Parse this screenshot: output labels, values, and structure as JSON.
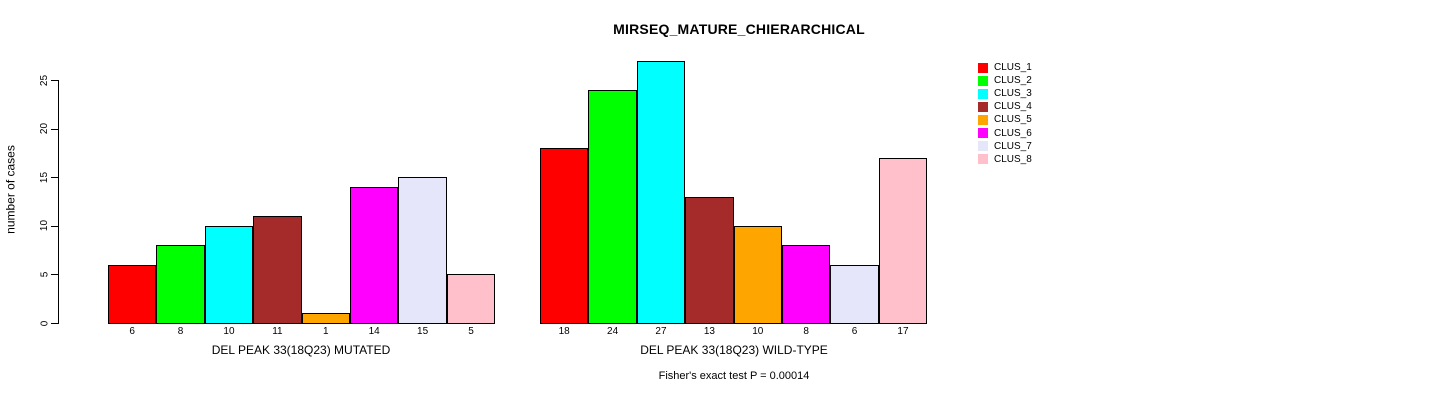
{
  "chart_data": {
    "type": "bar",
    "title": "MIRSEQ_MATURE_CHIERARCHICAL",
    "ylabel": "number of cases",
    "ylim": [
      0,
      27
    ],
    "yticks": [
      0,
      5,
      10,
      15,
      20,
      25
    ],
    "grid": false,
    "legend_position": "right-outside",
    "categories": [
      "CLUS_1",
      "CLUS_2",
      "CLUS_3",
      "CLUS_4",
      "CLUS_5",
      "CLUS_6",
      "CLUS_7",
      "CLUS_8"
    ],
    "colors": [
      "#FF0000",
      "#00FF00",
      "#00FFFF",
      "#A52A2A",
      "#FFA500",
      "#FF00FF",
      "#E6E6FA",
      "#FFC0CB"
    ],
    "groups": [
      {
        "xlabel": "DEL PEAK 33(18Q23) MUTATED",
        "values": [
          6,
          8,
          10,
          11,
          1,
          14,
          15,
          5
        ]
      },
      {
        "xlabel": "DEL PEAK 33(18Q23) WILD-TYPE",
        "values": [
          18,
          24,
          27,
          13,
          10,
          8,
          6,
          17
        ]
      }
    ],
    "annotation": "Fisher's exact test P = 0.00014"
  }
}
